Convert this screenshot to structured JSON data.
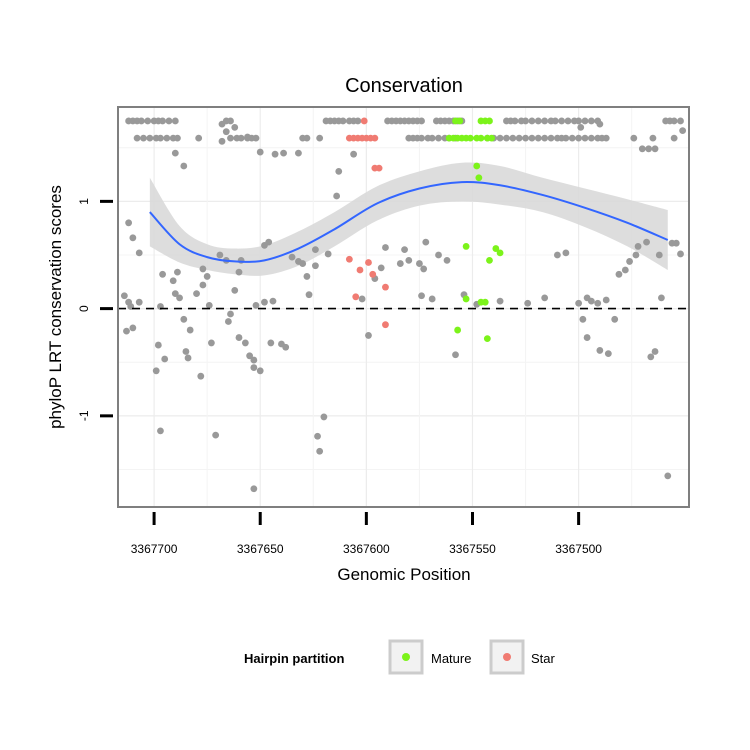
{
  "chart_data": {
    "type": "scatter",
    "title": "Conservation",
    "xlabel": "Genomic Position",
    "ylabel": "phyloP LRT conservation scores",
    "x_reversed": true,
    "xlim": [
      3367448,
      3367717
    ],
    "ylim": [
      -1.85,
      1.88
    ],
    "x_ticks": [
      3367700,
      3367650,
      3367600,
      3367550,
      3367500
    ],
    "x_tick_labels": [
      "3367700",
      "3367650",
      "3367600",
      "3367550",
      "3367500"
    ],
    "y_ticks": [
      -1,
      0,
      1
    ],
    "y_tick_labels": [
      "-1",
      "0",
      "1"
    ],
    "grid": true,
    "reference_line": {
      "y": 0,
      "style": "dashed"
    },
    "legend": {
      "title": "Hairpin partition",
      "position": "bottom",
      "entries": [
        {
          "label": "Mature",
          "color": "#7cf31a"
        },
        {
          "label": "Star",
          "color": "#f07b72"
        }
      ]
    },
    "colors": {
      "unlabeled": "#999999",
      "mature": "#7cf31a",
      "star": "#f07b72",
      "smooth": "#3366ff",
      "ribbon": "#d9d9d9"
    },
    "series": [
      {
        "partition": "other",
        "points": [
          [
            3367712,
            1.75
          ],
          [
            3367710,
            1.75
          ],
          [
            3367708,
            1.75
          ],
          [
            3367706,
            1.75
          ],
          [
            3367703,
            1.75
          ],
          [
            3367700,
            1.75
          ],
          [
            3367698,
            1.75
          ],
          [
            3367696,
            1.75
          ],
          [
            3367693,
            1.75
          ],
          [
            3367690,
            1.75
          ],
          [
            3367708,
            1.59
          ],
          [
            3367705,
            1.59
          ],
          [
            3367702,
            1.59
          ],
          [
            3367699,
            1.59
          ],
          [
            3367697,
            1.59
          ],
          [
            3367694,
            1.59
          ],
          [
            3367691,
            1.59
          ],
          [
            3367689,
            1.59
          ],
          [
            3367679,
            1.59
          ],
          [
            3367690,
            1.45
          ],
          [
            3367686,
            1.33
          ],
          [
            3367664,
            1.59
          ],
          [
            3367661,
            1.59
          ],
          [
            3367659,
            1.59
          ],
          [
            3367656,
            1.59
          ],
          [
            3367654,
            1.59
          ],
          [
            3367652,
            1.59
          ],
          [
            3367630,
            1.59
          ],
          [
            3367628,
            1.59
          ],
          [
            3367622,
            1.59
          ],
          [
            3367668,
            1.72
          ],
          [
            3367666,
            1.75
          ],
          [
            3367664,
            1.75
          ],
          [
            3367666,
            1.65
          ],
          [
            3367668,
            1.56
          ],
          [
            3367662,
            1.69
          ],
          [
            3367656,
            1.6
          ],
          [
            3367650,
            1.46
          ],
          [
            3367643,
            1.44
          ],
          [
            3367639,
            1.45
          ],
          [
            3367632,
            1.45
          ],
          [
            3367619,
            1.75
          ],
          [
            3367617,
            1.75
          ],
          [
            3367615,
            1.75
          ],
          [
            3367613,
            1.75
          ],
          [
            3367611,
            1.75
          ],
          [
            3367608,
            1.75
          ],
          [
            3367606,
            1.75
          ],
          [
            3367604,
            1.75
          ],
          [
            3367590,
            1.75
          ],
          [
            3367588,
            1.75
          ],
          [
            3367586,
            1.75
          ],
          [
            3367584,
            1.75
          ],
          [
            3367582,
            1.75
          ],
          [
            3367580,
            1.75
          ],
          [
            3367578,
            1.75
          ],
          [
            3367576,
            1.75
          ],
          [
            3367574,
            1.75
          ],
          [
            3367567,
            1.75
          ],
          [
            3367565,
            1.75
          ],
          [
            3367563,
            1.75
          ],
          [
            3367561,
            1.75
          ],
          [
            3367559,
            1.75
          ],
          [
            3367557,
            1.75
          ],
          [
            3367555,
            1.75
          ],
          [
            3367534,
            1.75
          ],
          [
            3367532,
            1.75
          ],
          [
            3367530,
            1.75
          ],
          [
            3367527,
            1.75
          ],
          [
            3367525,
            1.75
          ],
          [
            3367522,
            1.75
          ],
          [
            3367519,
            1.75
          ],
          [
            3367516,
            1.75
          ],
          [
            3367513,
            1.75
          ],
          [
            3367511,
            1.75
          ],
          [
            3367508,
            1.75
          ],
          [
            3367505,
            1.75
          ],
          [
            3367502,
            1.75
          ],
          [
            3367500,
            1.75
          ],
          [
            3367497,
            1.75
          ],
          [
            3367494,
            1.75
          ],
          [
            3367491,
            1.75
          ],
          [
            3367580,
            1.59
          ],
          [
            3367578,
            1.59
          ],
          [
            3367576,
            1.59
          ],
          [
            3367574,
            1.59
          ],
          [
            3367571,
            1.59
          ],
          [
            3367569,
            1.59
          ],
          [
            3367566,
            1.59
          ],
          [
            3367563,
            1.59
          ],
          [
            3367561,
            1.59
          ],
          [
            3367558,
            1.59
          ],
          [
            3367543,
            1.59
          ],
          [
            3367540,
            1.59
          ],
          [
            3367537,
            1.59
          ],
          [
            3367534,
            1.59
          ],
          [
            3367531,
            1.59
          ],
          [
            3367528,
            1.59
          ],
          [
            3367525,
            1.59
          ],
          [
            3367522,
            1.59
          ],
          [
            3367519,
            1.59
          ],
          [
            3367516,
            1.59
          ],
          [
            3367513,
            1.59
          ],
          [
            3367510,
            1.59
          ],
          [
            3367508,
            1.59
          ],
          [
            3367506,
            1.59
          ],
          [
            3367503,
            1.59
          ],
          [
            3367500,
            1.59
          ],
          [
            3367497,
            1.59
          ],
          [
            3367494,
            1.59
          ],
          [
            3367491,
            1.59
          ],
          [
            3367489,
            1.59
          ],
          [
            3367487,
            1.59
          ],
          [
            3367474,
            1.59
          ],
          [
            3367465,
            1.59
          ],
          [
            3367455,
            1.59
          ],
          [
            3367499,
            1.69
          ],
          [
            3367490,
            1.72
          ],
          [
            3367470,
            1.49
          ],
          [
            3367467,
            1.49
          ],
          [
            3367464,
            1.49
          ],
          [
            3367459,
            1.75
          ],
          [
            3367457,
            1.75
          ],
          [
            3367455,
            1.75
          ],
          [
            3367452,
            1.75
          ],
          [
            3367451,
            1.66
          ],
          [
            3367606,
            1.44
          ],
          [
            3367613,
            1.28
          ],
          [
            3367614,
            1.05
          ],
          [
            3367712,
            0.8
          ],
          [
            3367710,
            0.66
          ],
          [
            3367707,
            0.52
          ],
          [
            3367714,
            0.12
          ],
          [
            3367712,
            0.06
          ],
          [
            3367711,
            0.02
          ],
          [
            3367713,
            -0.21
          ],
          [
            3367710,
            -0.18
          ],
          [
            3367707,
            0.06
          ],
          [
            3367696,
            0.32
          ],
          [
            3367697,
            0.02
          ],
          [
            3367698,
            -0.34
          ],
          [
            3367699,
            -0.58
          ],
          [
            3367695,
            -0.47
          ],
          [
            3367697,
            -1.14
          ],
          [
            3367690,
            0.14
          ],
          [
            3367691,
            0.26
          ],
          [
            3367689,
            0.34
          ],
          [
            3367688,
            0.1
          ],
          [
            3367686,
            -0.1
          ],
          [
            3367685,
            -0.4
          ],
          [
            3367684,
            -0.46
          ],
          [
            3367683,
            -0.2
          ],
          [
            3367680,
            0.14
          ],
          [
            3367678,
            -0.63
          ],
          [
            3367677,
            0.37
          ],
          [
            3367677,
            0.22
          ],
          [
            3367675,
            0.3
          ],
          [
            3367674,
            0.03
          ],
          [
            3367673,
            -0.32
          ],
          [
            3367671,
            -1.18
          ],
          [
            3367669,
            0.5
          ],
          [
            3367666,
            0.45
          ],
          [
            3367659,
            0.45
          ],
          [
            3367660,
            0.34
          ],
          [
            3367662,
            0.17
          ],
          [
            3367664,
            -0.05
          ],
          [
            3367665,
            -0.12
          ],
          [
            3367660,
            -0.27
          ],
          [
            3367657,
            -0.32
          ],
          [
            3367655,
            -0.44
          ],
          [
            3367653,
            -0.48
          ],
          [
            3367653,
            -0.55
          ],
          [
            3367653,
            -1.68
          ],
          [
            3367652,
            0.03
          ],
          [
            3367650,
            -0.58
          ],
          [
            3367648,
            0.06
          ],
          [
            3367644,
            0.07
          ],
          [
            3367645,
            -0.32
          ],
          [
            3367640,
            -0.33
          ],
          [
            3367638,
            -0.36
          ],
          [
            3367646,
            0.62
          ],
          [
            3367648,
            0.59
          ],
          [
            3367635,
            0.48
          ],
          [
            3367632,
            0.44
          ],
          [
            3367628,
            0.3
          ],
          [
            3367630,
            0.42
          ],
          [
            3367624,
            0.55
          ],
          [
            3367623,
            -1.19
          ],
          [
            3367622,
            -1.33
          ],
          [
            3367620,
            -1.01
          ],
          [
            3367624,
            0.4
          ],
          [
            3367627,
            0.13
          ],
          [
            3367618,
            0.51
          ],
          [
            3367602,
            0.09
          ],
          [
            3367599,
            -0.25
          ],
          [
            3367596,
            0.28
          ],
          [
            3367593,
            0.38
          ],
          [
            3367591,
            0.57
          ],
          [
            3367584,
            0.42
          ],
          [
            3367580,
            0.45
          ],
          [
            3367582,
            0.55
          ],
          [
            3367575,
            0.42
          ],
          [
            3367574,
            0.12
          ],
          [
            3367573,
            0.37
          ],
          [
            3367572,
            0.62
          ],
          [
            3367569,
            0.09
          ],
          [
            3367566,
            0.5
          ],
          [
            3367562,
            0.45
          ],
          [
            3367558,
            -0.43
          ],
          [
            3367554,
            0.13
          ],
          [
            3367548,
            0.04
          ],
          [
            3367537,
            0.07
          ],
          [
            3367524,
            0.05
          ],
          [
            3367516,
            0.1
          ],
          [
            3367510,
            0.5
          ],
          [
            3367506,
            0.52
          ],
          [
            3367500,
            0.05
          ],
          [
            3367498,
            -0.1
          ],
          [
            3367496,
            0.1
          ],
          [
            3367496,
            -0.27
          ],
          [
            3367494,
            0.07
          ],
          [
            3367491,
            0.05
          ],
          [
            3367490,
            -0.39
          ],
          [
            3367487,
            0.08
          ],
          [
            3367486,
            -0.42
          ],
          [
            3367483,
            -0.1
          ],
          [
            3367481,
            0.32
          ],
          [
            3367478,
            0.36
          ],
          [
            3367476,
            0.44
          ],
          [
            3367473,
            0.5
          ],
          [
            3367472,
            0.58
          ],
          [
            3367468,
            0.62
          ],
          [
            3367466,
            -0.45
          ],
          [
            3367464,
            -0.4
          ],
          [
            3367462,
            0.5
          ],
          [
            3367461,
            0.1
          ],
          [
            3367458,
            -1.56
          ],
          [
            3367456,
            0.61
          ],
          [
            3367454,
            0.61
          ],
          [
            3367452,
            0.51
          ]
        ]
      },
      {
        "partition": "Mature",
        "points": [
          [
            3367558,
            1.75
          ],
          [
            3367556,
            1.75
          ],
          [
            3367546,
            1.75
          ],
          [
            3367544,
            1.75
          ],
          [
            3367542,
            1.75
          ],
          [
            3367561,
            1.59
          ],
          [
            3367559,
            1.59
          ],
          [
            3367557,
            1.59
          ],
          [
            3367555,
            1.59
          ],
          [
            3367553,
            1.59
          ],
          [
            3367551,
            1.59
          ],
          [
            3367548,
            1.59
          ],
          [
            3367546,
            1.59
          ],
          [
            3367543,
            1.59
          ],
          [
            3367541,
            1.59
          ],
          [
            3367548,
            1.33
          ],
          [
            3367547,
            1.22
          ],
          [
            3367553,
            0.58
          ],
          [
            3367539,
            0.56
          ],
          [
            3367537,
            0.52
          ],
          [
            3367542,
            0.45
          ],
          [
            3367553,
            0.09
          ],
          [
            3367546,
            0.06
          ],
          [
            3367544,
            0.06
          ],
          [
            3367557,
            -0.2
          ],
          [
            3367543,
            -0.28
          ]
        ]
      },
      {
        "partition": "Star",
        "points": [
          [
            3367601,
            1.75
          ],
          [
            3367608,
            1.59
          ],
          [
            3367606,
            1.59
          ],
          [
            3367604,
            1.59
          ],
          [
            3367602,
            1.59
          ],
          [
            3367600,
            1.59
          ],
          [
            3367598,
            1.59
          ],
          [
            3367596,
            1.59
          ],
          [
            3367596,
            1.31
          ],
          [
            3367594,
            1.31
          ],
          [
            3367608,
            0.46
          ],
          [
            3367599,
            0.43
          ],
          [
            3367603,
            0.36
          ],
          [
            3367597,
            0.32
          ],
          [
            3367591,
            0.2
          ],
          [
            3367605,
            0.11
          ],
          [
            3367591,
            -0.15
          ]
        ]
      }
    ],
    "smooth": {
      "x": [
        3367702,
        3367688,
        3367675,
        3367662,
        3367648,
        3367632,
        3367615,
        3367595,
        3367575,
        3367555,
        3367537,
        3367517,
        3367497,
        3367477,
        3367458
      ],
      "y": [
        0.9,
        0.6,
        0.48,
        0.44,
        0.45,
        0.56,
        0.74,
        0.98,
        1.12,
        1.18,
        1.15,
        1.06,
        0.94,
        0.8,
        0.64
      ],
      "ribbon_half_width": [
        0.32,
        0.17,
        0.12,
        0.12,
        0.14,
        0.16,
        0.16,
        0.16,
        0.16,
        0.18,
        0.18,
        0.16,
        0.18,
        0.22,
        0.28
      ]
    }
  }
}
